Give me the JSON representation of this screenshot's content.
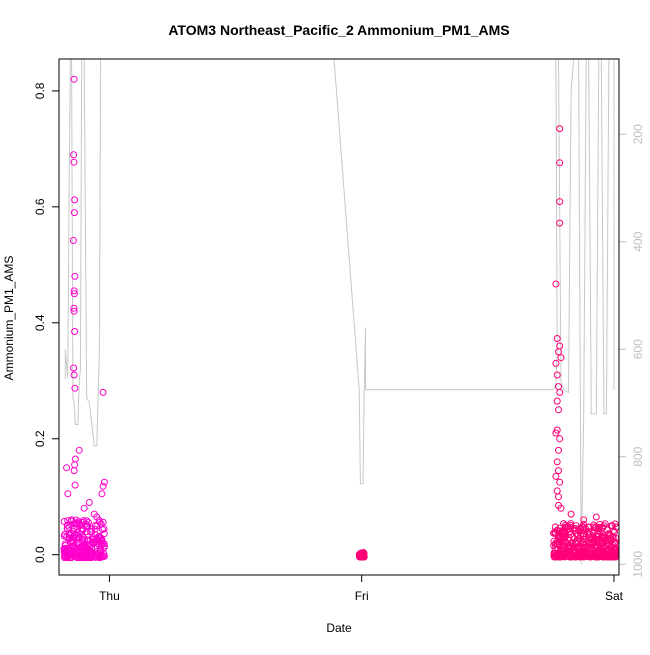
{
  "chart_data": {
    "type": "scatter",
    "title": "ATOM3 Northeast_Pacific_2 Ammonium_PM1_AMS",
    "xlabel": "Date",
    "ylabel": "Ammonium_PM1_AMS",
    "x_ticks": [
      {
        "label": "Thu",
        "day": 0
      },
      {
        "label": "Fri",
        "day": 1
      },
      {
        "label": "Sat",
        "day": 2
      }
    ],
    "xlim_days": [
      -0.2,
      2.02
    ],
    "ylim": [
      -0.035,
      0.855
    ],
    "y_ticks": [
      0.0,
      0.2,
      0.4,
      0.6,
      0.8
    ],
    "y_tick_labels": [
      "0.0",
      "0.2",
      "0.4",
      "0.6",
      "0.8"
    ],
    "y2_ticks": [
      200,
      400,
      600,
      800,
      1000
    ],
    "y2_tick_labels": [
      "200",
      "400",
      "600",
      "800",
      "1000"
    ],
    "y2lim": [
      1020,
      60
    ],
    "grid": false,
    "colors": {
      "series_a": "#ff00cc",
      "series_b": "#ff0077",
      "pressure_line": "#c8c8c8",
      "frame": "#000000",
      "right_axis": "#bebebe"
    },
    "series": [
      {
        "values": [
          [
            -0.17,
            0.15
          ],
          [
            -0.165,
            0.105
          ],
          [
            -0.14,
            0.82
          ],
          [
            -0.142,
            0.69
          ],
          [
            -0.141,
            0.677
          ],
          [
            -0.138,
            0.612
          ],
          [
            -0.139,
            0.59
          ],
          [
            -0.143,
            0.542
          ],
          [
            -0.137,
            0.48
          ],
          [
            -0.14,
            0.455
          ],
          [
            -0.139,
            0.45
          ],
          [
            -0.141,
            0.425
          ],
          [
            -0.14,
            0.42
          ],
          [
            -0.138,
            0.385
          ],
          [
            -0.142,
            0.322
          ],
          [
            -0.14,
            0.31
          ],
          [
            -0.137,
            0.287
          ],
          [
            -0.135,
            0.165
          ],
          [
            -0.138,
            0.155
          ],
          [
            -0.14,
            0.145
          ],
          [
            -0.136,
            0.12
          ],
          [
            -0.12,
            0.18
          ],
          [
            -0.025,
            0.28
          ],
          [
            -0.02,
            0.125
          ],
          [
            -0.025,
            0.118
          ],
          [
            -0.03,
            0.105
          ],
          [
            -0.08,
            0.09
          ],
          [
            -0.1,
            0.08
          ],
          [
            -0.06,
            0.07
          ],
          [
            -0.15,
            0.06
          ],
          [
            -0.13,
            0.055
          ],
          [
            -0.05,
            0.065
          ],
          [
            -0.09,
            0.05
          ],
          [
            -0.11,
            0.045
          ],
          [
            -0.07,
            0.04
          ],
          [
            -0.16,
            0.035
          ],
          [
            -0.04,
            0.03
          ],
          [
            -0.12,
            0.028
          ],
          [
            -0.085,
            0.025
          ],
          [
            -0.155,
            0.022
          ],
          [
            -0.065,
            0.02
          ],
          [
            -0.03,
            0.018
          ],
          [
            -0.145,
            0.015
          ],
          [
            -0.095,
            0.012
          ],
          [
            -0.055,
            0.01
          ],
          [
            -0.175,
            0.008
          ],
          [
            -0.115,
            0.005
          ],
          [
            -0.075,
            0.003
          ],
          [
            -0.045,
            0.0
          ],
          [
            -0.02,
            -0.003
          ]
        ],
        "jitter": {
          "x_range": [
            -0.18,
            -0.015
          ],
          "y_range": [
            -0.005,
            0.06
          ],
          "count": 240
        }
      },
      {
        "values": [
          [
            1.0,
            0.0
          ],
          [
            1.005,
            0.002
          ],
          [
            0.995,
            0.001
          ],
          [
            1.002,
            -0.002
          ],
          [
            0.998,
            0.003
          ]
        ],
        "jitter": {
          "x_range": [
            0.99,
            1.01
          ],
          "y_range": [
            -0.004,
            0.004
          ],
          "count": 40
        }
      },
      {
        "values": [
          [
            1.77,
            0.467
          ],
          [
            1.785,
            0.735
          ],
          [
            1.785,
            0.676
          ],
          [
            1.785,
            0.609
          ],
          [
            1.785,
            0.572
          ],
          [
            1.775,
            0.373
          ],
          [
            1.78,
            0.35
          ],
          [
            1.785,
            0.36
          ],
          [
            1.79,
            0.34
          ],
          [
            1.77,
            0.33
          ],
          [
            1.775,
            0.31
          ],
          [
            1.78,
            0.29
          ],
          [
            1.785,
            0.28
          ],
          [
            1.775,
            0.265
          ],
          [
            1.78,
            0.25
          ],
          [
            1.775,
            0.215
          ],
          [
            1.77,
            0.21
          ],
          [
            1.785,
            0.2
          ],
          [
            1.78,
            0.18
          ],
          [
            1.775,
            0.16
          ],
          [
            1.78,
            0.145
          ],
          [
            1.77,
            0.135
          ],
          [
            1.785,
            0.125
          ],
          [
            1.775,
            0.11
          ],
          [
            1.78,
            0.1
          ],
          [
            1.78,
            0.085
          ],
          [
            1.79,
            0.08
          ],
          [
            1.83,
            0.07
          ],
          [
            1.88,
            0.06
          ],
          [
            1.93,
            0.065
          ],
          [
            1.96,
            0.05
          ],
          [
            1.85,
            0.045
          ],
          [
            1.9,
            0.04
          ],
          [
            1.8,
            0.035
          ],
          [
            1.95,
            0.03
          ],
          [
            1.87,
            0.025
          ],
          [
            1.92,
            0.02
          ],
          [
            1.82,
            0.015
          ],
          [
            1.99,
            0.01
          ],
          [
            2.0,
            0.0
          ],
          [
            1.86,
            0.005
          ],
          [
            1.94,
            -0.002
          ]
        ],
        "jitter": {
          "x_range": [
            1.76,
            2.01
          ],
          "y_range": [
            -0.004,
            0.055
          ],
          "count": 380
        }
      }
    ],
    "pressure_line": {
      "points": [
        [
          -0.175,
          655
        ],
        [
          -0.175,
          600
        ],
        [
          -0.165,
          655
        ],
        [
          -0.16,
          300
        ],
        [
          -0.155,
          60
        ],
        [
          -0.15,
          60
        ],
        [
          -0.145,
          690
        ],
        [
          -0.14,
          700
        ],
        [
          -0.135,
          740
        ],
        [
          -0.125,
          740
        ],
        [
          -0.12,
          660
        ],
        [
          -0.115,
          640
        ],
        [
          -0.11,
          60
        ],
        [
          -0.1,
          60
        ],
        [
          -0.09,
          690
        ],
        [
          -0.08,
          700
        ],
        [
          -0.06,
          780
        ],
        [
          -0.05,
          780
        ],
        [
          -0.04,
          600
        ],
        [
          -0.035,
          60
        ],
        [
          -0.025,
          60
        ],
        [
          -0.035,
          60
        ],
        [
          0.89,
          60
        ],
        [
          0.89,
          60
        ],
        [
          0.99,
          675
        ],
        [
          0.99,
          675
        ],
        [
          0.995,
          850
        ],
        [
          1.005,
          850
        ],
        [
          1.01,
          680
        ],
        [
          1.015,
          560
        ],
        [
          1.015,
          675
        ],
        [
          1.75,
          675
        ],
        [
          1.75,
          675
        ],
        [
          1.76,
          675
        ],
        [
          1.77,
          665
        ],
        [
          1.77,
          665
        ],
        [
          1.775,
          600
        ],
        [
          1.77,
          60
        ],
        [
          1.78,
          60
        ],
        [
          1.79,
          660
        ],
        [
          1.8,
          675
        ],
        [
          1.82,
          680
        ],
        [
          1.83,
          120
        ],
        [
          1.84,
          60
        ],
        [
          1.86,
          60
        ],
        [
          1.87,
          1000
        ],
        [
          1.88,
          720
        ],
        [
          1.89,
          60
        ],
        [
          1.9,
          60
        ],
        [
          1.91,
          720
        ],
        [
          1.93,
          720
        ],
        [
          1.94,
          60
        ],
        [
          1.95,
          60
        ],
        [
          1.96,
          720
        ],
        [
          1.97,
          720
        ],
        [
          1.98,
          60
        ],
        [
          2.0,
          60
        ],
        [
          2.0,
          675
        ]
      ]
    }
  }
}
